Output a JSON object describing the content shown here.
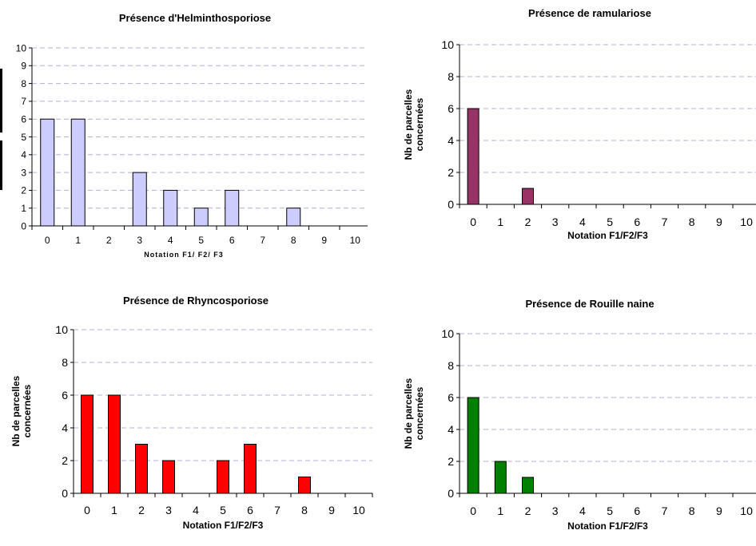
{
  "chart_data": [
    {
      "type": "bar",
      "title": "Présence d'Helminthosporiose",
      "xlabel": "Notation F1/ F2/ F3",
      "ylabel": "",
      "categories": [
        "0",
        "1",
        "2",
        "3",
        "4",
        "5",
        "6",
        "7",
        "8",
        "9",
        "10"
      ],
      "values": [
        6,
        6,
        0,
        3,
        2,
        1,
        2,
        0,
        1,
        0,
        0
      ],
      "ylim": [
        0,
        10
      ],
      "yticks": [
        0,
        1,
        2,
        3,
        4,
        5,
        6,
        7,
        8,
        9,
        10
      ],
      "bar_color": "#ccccff",
      "grid": true,
      "legend": "none"
    },
    {
      "type": "bar",
      "title": "Présence de ramulariose",
      "xlabel": "Notation F1/F2/F3",
      "ylabel": "Nb de parcelles concernées",
      "categories": [
        "0",
        "1",
        "2",
        "3",
        "4",
        "5",
        "6",
        "7",
        "8",
        "9",
        "10"
      ],
      "values": [
        6,
        0,
        1,
        0,
        0,
        0,
        0,
        0,
        0,
        0,
        0
      ],
      "ylim": [
        0,
        10
      ],
      "yticks": [
        0,
        2,
        4,
        6,
        8,
        10
      ],
      "bar_color": "#993366",
      "grid": true,
      "legend": "none"
    },
    {
      "type": "bar",
      "title": "Présence de Rhyncosporiose",
      "xlabel": "Notation F1/F2/F3",
      "ylabel": "Nb de parcelles concernées",
      "categories": [
        "0",
        "1",
        "2",
        "3",
        "4",
        "5",
        "6",
        "7",
        "8",
        "9",
        "10"
      ],
      "values": [
        6,
        6,
        3,
        2,
        0,
        2,
        3,
        0,
        1,
        0,
        0
      ],
      "ylim": [
        0,
        10
      ],
      "yticks": [
        0,
        2,
        4,
        6,
        8,
        10
      ],
      "bar_color": "#ff0000",
      "grid": true,
      "legend": "none"
    },
    {
      "type": "bar",
      "title": "Présence de Rouille naine",
      "xlabel": "Notation F1/F2/F3",
      "ylabel": "Nb de parcelles concernées",
      "categories": [
        "0",
        "1",
        "2",
        "3",
        "4",
        "5",
        "6",
        "7",
        "8",
        "9",
        "10"
      ],
      "values": [
        6,
        2,
        1,
        0,
        0,
        0,
        0,
        0,
        0,
        0,
        0
      ],
      "ylim": [
        0,
        10
      ],
      "yticks": [
        0,
        2,
        4,
        6,
        8,
        10
      ],
      "bar_color": "#008000",
      "grid": true,
      "legend": "none"
    }
  ]
}
